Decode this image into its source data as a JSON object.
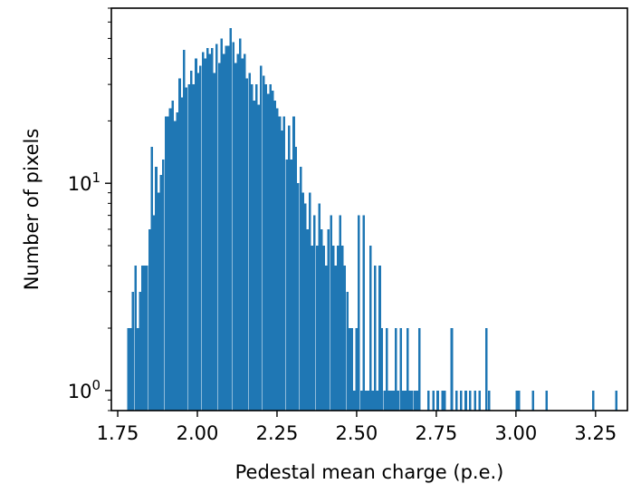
{
  "chart_data": {
    "type": "bar",
    "histogram": true,
    "xlabel": "Pedestal mean charge (p.e.)",
    "ylabel": "Number of pixels",
    "yscale": "log",
    "xlim": [
      1.73,
      3.35
    ],
    "ylim": [
      0.8,
      70
    ],
    "bar_color": "#1f77b4",
    "bin_width": 0.0073,
    "xticks": [
      {
        "value": 1.75,
        "label": "1.75"
      },
      {
        "value": 2.0,
        "label": "2.00"
      },
      {
        "value": 2.25,
        "label": "2.25"
      },
      {
        "value": 2.5,
        "label": "2.50"
      },
      {
        "value": 2.75,
        "label": "2.75"
      },
      {
        "value": 3.0,
        "label": "3.00"
      },
      {
        "value": 3.25,
        "label": "3.25"
      }
    ],
    "yticks": [
      {
        "value": 1,
        "base": "10",
        "exp": "0"
      },
      {
        "value": 10,
        "base": "10",
        "exp": "1"
      }
    ],
    "bins": [
      [
        1.78,
        2
      ],
      [
        1.787,
        2
      ],
      [
        1.794,
        3
      ],
      [
        1.802,
        4
      ],
      [
        1.809,
        2
      ],
      [
        1.816,
        3
      ],
      [
        1.824,
        4
      ],
      [
        1.831,
        4
      ],
      [
        1.838,
        4
      ],
      [
        1.846,
        6
      ],
      [
        1.853,
        15
      ],
      [
        1.86,
        7
      ],
      [
        1.867,
        12
      ],
      [
        1.875,
        9
      ],
      [
        1.882,
        11
      ],
      [
        1.889,
        13
      ],
      [
        1.897,
        21
      ],
      [
        1.904,
        21
      ],
      [
        1.911,
        23
      ],
      [
        1.919,
        25
      ],
      [
        1.926,
        20
      ],
      [
        1.933,
        22
      ],
      [
        1.941,
        32
      ],
      [
        1.948,
        26
      ],
      [
        1.955,
        44
      ],
      [
        1.962,
        29
      ],
      [
        1.97,
        30
      ],
      [
        1.977,
        35
      ],
      [
        1.984,
        30
      ],
      [
        1.992,
        40
      ],
      [
        1.999,
        34
      ],
      [
        2.006,
        37
      ],
      [
        2.014,
        43
      ],
      [
        2.021,
        40
      ],
      [
        2.028,
        45
      ],
      [
        2.036,
        42
      ],
      [
        2.043,
        45
      ],
      [
        2.05,
        34
      ],
      [
        2.057,
        47
      ],
      [
        2.065,
        38
      ],
      [
        2.072,
        50
      ],
      [
        2.079,
        42
      ],
      [
        2.087,
        46
      ],
      [
        2.094,
        46
      ],
      [
        2.101,
        56
      ],
      [
        2.109,
        48
      ],
      [
        2.116,
        38
      ],
      [
        2.123,
        42
      ],
      [
        2.131,
        50
      ],
      [
        2.138,
        40
      ],
      [
        2.145,
        42
      ],
      [
        2.152,
        32
      ],
      [
        2.16,
        34
      ],
      [
        2.167,
        30
      ],
      [
        2.174,
        25
      ],
      [
        2.182,
        30
      ],
      [
        2.189,
        24
      ],
      [
        2.196,
        37
      ],
      [
        2.204,
        33
      ],
      [
        2.211,
        30
      ],
      [
        2.218,
        27
      ],
      [
        2.226,
        30
      ],
      [
        2.233,
        28
      ],
      [
        2.24,
        25
      ],
      [
        2.247,
        23
      ],
      [
        2.255,
        21
      ],
      [
        2.262,
        18
      ],
      [
        2.269,
        21
      ],
      [
        2.277,
        13
      ],
      [
        2.284,
        19
      ],
      [
        2.291,
        13
      ],
      [
        2.299,
        21
      ],
      [
        2.306,
        15
      ],
      [
        2.313,
        10
      ],
      [
        2.321,
        12
      ],
      [
        2.328,
        9
      ],
      [
        2.335,
        8
      ],
      [
        2.342,
        6
      ],
      [
        2.35,
        9
      ],
      [
        2.357,
        5
      ],
      [
        2.364,
        7
      ],
      [
        2.372,
        5
      ],
      [
        2.379,
        8
      ],
      [
        2.386,
        6
      ],
      [
        2.394,
        5
      ],
      [
        2.401,
        4
      ],
      [
        2.408,
        6
      ],
      [
        2.416,
        7
      ],
      [
        2.423,
        5
      ],
      [
        2.43,
        4
      ],
      [
        2.437,
        5
      ],
      [
        2.445,
        7
      ],
      [
        2.452,
        5
      ],
      [
        2.459,
        4
      ],
      [
        2.467,
        3
      ],
      [
        2.474,
        2
      ],
      [
        2.481,
        2
      ],
      [
        2.489,
        1
      ],
      [
        2.496,
        2
      ],
      [
        2.503,
        7
      ],
      [
        2.511,
        1
      ],
      [
        2.518,
        7
      ],
      [
        2.525,
        1
      ],
      [
        2.532,
        1
      ],
      [
        2.54,
        5
      ],
      [
        2.547,
        1
      ],
      [
        2.554,
        4
      ],
      [
        2.562,
        1
      ],
      [
        2.569,
        4
      ],
      [
        2.576,
        2
      ],
      [
        2.584,
        1
      ],
      [
        2.591,
        2
      ],
      [
        2.598,
        1
      ],
      [
        2.606,
        1
      ],
      [
        2.613,
        1
      ],
      [
        2.62,
        2
      ],
      [
        2.627,
        1
      ],
      [
        2.635,
        2
      ],
      [
        2.642,
        1
      ],
      [
        2.649,
        1
      ],
      [
        2.657,
        2
      ],
      [
        2.664,
        1
      ],
      [
        2.671,
        1
      ],
      [
        2.679,
        1
      ],
      [
        2.686,
        1
      ],
      [
        2.693,
        2
      ],
      [
        2.722,
        1
      ],
      [
        2.737,
        1
      ],
      [
        2.751,
        1
      ],
      [
        2.766,
        1
      ],
      [
        2.773,
        1
      ],
      [
        2.795,
        2
      ],
      [
        2.81,
        1
      ],
      [
        2.824,
        1
      ],
      [
        2.839,
        1
      ],
      [
        2.853,
        1
      ],
      [
        2.868,
        1
      ],
      [
        2.882,
        1
      ],
      [
        2.904,
        2
      ],
      [
        2.912,
        1
      ],
      [
        2.999,
        1
      ],
      [
        3.006,
        1
      ],
      [
        3.05,
        1
      ],
      [
        3.093,
        1
      ],
      [
        3.239,
        1
      ],
      [
        3.312,
        1
      ]
    ]
  }
}
